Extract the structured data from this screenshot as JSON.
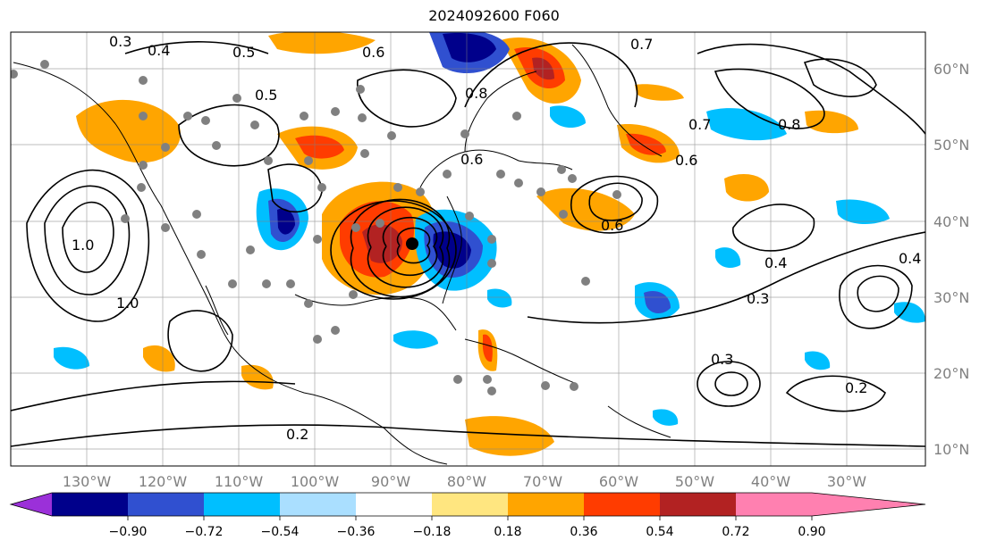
{
  "title": "2024092600 F060",
  "longitude_labels": [
    "130°W",
    "120°W",
    "110°W",
    "100°W",
    "90°W",
    "80°W",
    "70°W",
    "60°W",
    "50°W",
    "40°W",
    "30°W"
  ],
  "latitude_labels": [
    "60°N",
    "50°N",
    "40°N",
    "30°N",
    "20°N",
    "10°N"
  ],
  "colorbar": {
    "tick_labels": [
      "−0.90",
      "−0.72",
      "−0.54",
      "−0.36",
      "−0.18",
      "0.18",
      "0.36",
      "0.54",
      "0.72",
      "0.90"
    ],
    "colors": [
      "#9b30d9",
      "#00008b",
      "#3050d0",
      "#00bfff",
      "#aadfff",
      "#ffffff",
      "#ffe680",
      "#ffa500",
      "#ff3c00",
      "#b22222",
      "#ff80b0"
    ]
  },
  "contour_labels": [
    "0.3",
    "0.4",
    "0.5",
    "0.6",
    "0.7",
    "0.8",
    "1.0",
    "0.2",
    "0.5",
    "0.6",
    "0.7",
    "0.8",
    "0.6",
    "0.4",
    "0.3",
    "0.2",
    "0.3",
    "0.4",
    "0.6",
    "1.0"
  ]
}
